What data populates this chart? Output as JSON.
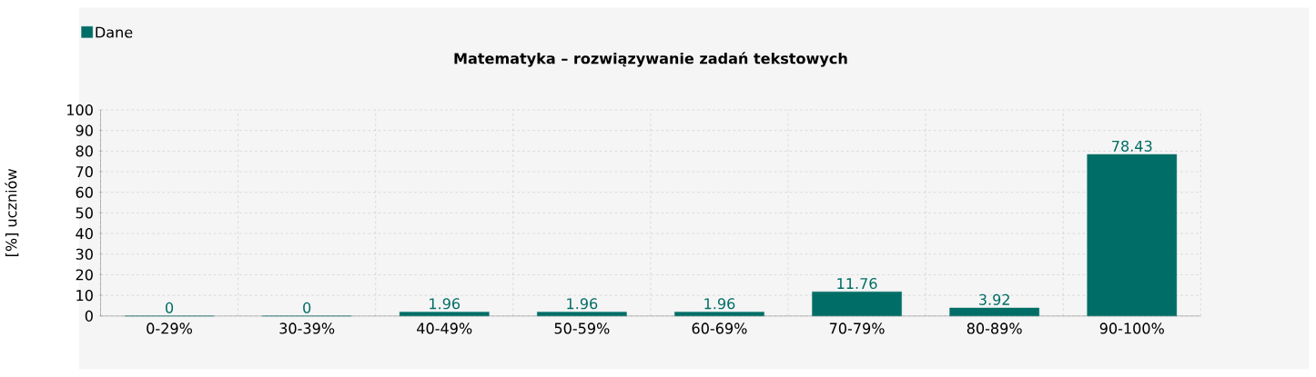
{
  "chart_data": {
    "type": "bar",
    "title": "Matematyka – rozwiązywanie zadań tekstowych",
    "ylabel": "[%] uczniów",
    "categories": [
      "0-29%",
      "30-39%",
      "40-49%",
      "50-59%",
      "60-69%",
      "70-79%",
      "80-89%",
      "90-100%"
    ],
    "series": [
      {
        "name": "Dane",
        "color": "#006e66",
        "values": [
          0,
          0,
          1.96,
          1.96,
          1.96,
          11.76,
          3.92,
          78.43
        ]
      }
    ],
    "ylim": [
      0,
      100
    ],
    "yticks": [
      0,
      10,
      20,
      30,
      40,
      50,
      60,
      70,
      80,
      90,
      100
    ],
    "grid": true,
    "legend": "top left",
    "data_labels": true
  }
}
